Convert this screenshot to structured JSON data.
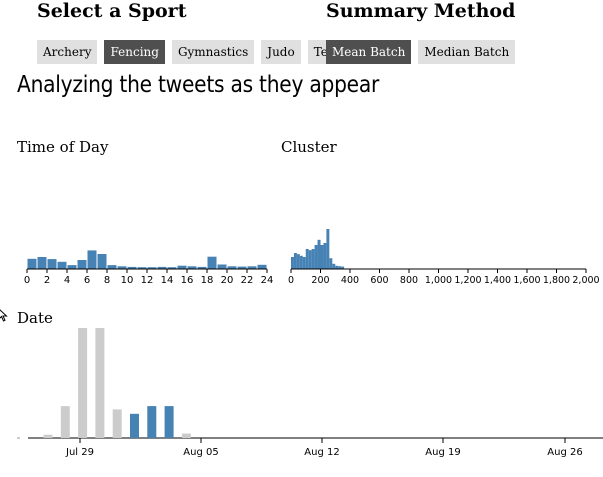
{
  "sport_section": {
    "title": "Select a Sport",
    "buttons": [
      {
        "label": "Archery",
        "active": false
      },
      {
        "label": "Fencing",
        "active": true
      },
      {
        "label": "Gymnastics",
        "active": false
      },
      {
        "label": "Judo",
        "active": false
      },
      {
        "label": "Tennis",
        "active": false
      }
    ]
  },
  "summary_section": {
    "title": "Summary Method",
    "buttons": [
      {
        "label": "Mean Batch",
        "active": true
      },
      {
        "label": "Median Batch",
        "active": false
      }
    ]
  },
  "page_title": "Analyzing the tweets as they appear",
  "colors": {
    "bar": "#4682b4",
    "bar_inactive": "#cccccc",
    "active_button": "#4f4f4f",
    "button": "#e0e0e0"
  },
  "chart_data": [
    {
      "type": "bar",
      "title": "Time of Day",
      "xlim": [
        0,
        24
      ],
      "x_ticks": [
        "0",
        "2",
        "4",
        "6",
        "8",
        "10",
        "12",
        "14",
        "16",
        "18",
        "20",
        "22",
        "24"
      ],
      "values": [
        0.34,
        0.4,
        0.33,
        0.24,
        0.13,
        0.3,
        0.62,
        0.5,
        0.13,
        0.09,
        0.07,
        0.06,
        0.06,
        0.07,
        0.06,
        0.11,
        0.09,
        0.07,
        0.41,
        0.15,
        0.09,
        0.08,
        0.09,
        0.14
      ]
    },
    {
      "type": "bar",
      "title": "Cluster",
      "xlim": [
        0,
        2000
      ],
      "x_ticks": [
        "0",
        "200",
        "400",
        "600",
        "800",
        "1,000",
        "1,200",
        "1,400",
        "1,600",
        "1,800",
        "2,000"
      ],
      "bin_width": 20,
      "values": [
        0.3,
        0.4,
        0.37,
        0.33,
        0.3,
        0.5,
        0.47,
        0.5,
        0.6,
        0.73,
        0.6,
        0.65,
        1.0,
        0.27,
        0.13,
        0.08,
        0.07,
        0.06
      ]
    },
    {
      "type": "bar",
      "title": "Date",
      "x_ticks": [
        "Jul 29",
        "Aug 05",
        "Aug 12",
        "Aug 19",
        "Aug 26"
      ],
      "days": [
        "Jul 26",
        "Jul 27",
        "Jul 28",
        "Jul 29",
        "Jul 30",
        "Jul 31",
        "Aug 01",
        "Aug 02",
        "Aug 03",
        "Aug 04"
      ],
      "values": [
        0.03,
        0.29,
        1.0,
        1.0,
        0.26,
        0.22,
        0.29,
        0.29,
        0.04,
        0
      ],
      "selected": [
        false,
        false,
        false,
        false,
        false,
        true,
        true,
        true,
        false,
        false
      ],
      "baseline_marker_day": "Jul 25"
    }
  ]
}
